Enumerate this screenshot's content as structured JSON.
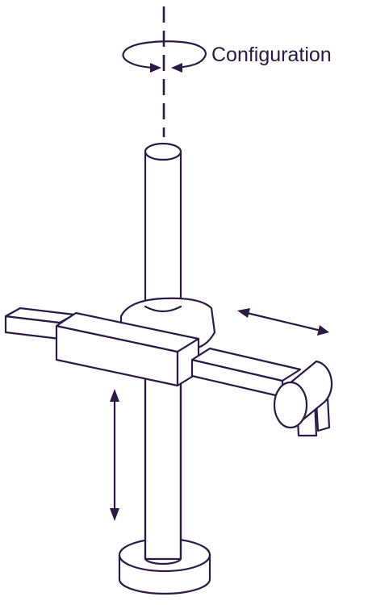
{
  "labels": {
    "configuration": "Configuration"
  },
  "colors": {
    "line": "#2a1a45",
    "background": "#ffffff"
  }
}
